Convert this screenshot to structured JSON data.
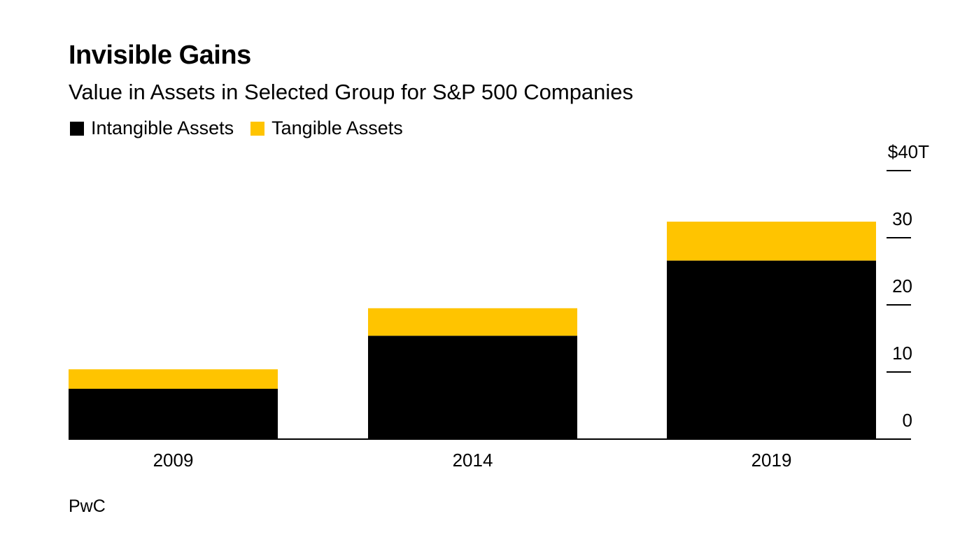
{
  "header": {
    "title": "Invisible Gains",
    "subtitle": "Value in Assets in Selected Group for S&P 500 Companies"
  },
  "source": "PwC",
  "colors": {
    "intangible": "#000000",
    "tangible": "#FFC400",
    "axis": "#000000"
  },
  "chart_data": {
    "type": "bar",
    "stacked": true,
    "categories": [
      "2009",
      "2014",
      "2019"
    ],
    "series": [
      {
        "name": "Intangible Assets",
        "values": [
          7.5,
          15.4,
          26.6
        ]
      },
      {
        "name": "Tangible Assets",
        "values": [
          2.9,
          4.1,
          5.8
        ]
      }
    ],
    "ylim": [
      0,
      40
    ],
    "yticks": [
      0,
      10,
      20,
      30,
      40
    ],
    "ytick_labels": [
      "0",
      "10",
      "20",
      "30",
      "$40T"
    ],
    "y_axis_position": "right",
    "grid": false,
    "legend_position": "top-left"
  }
}
